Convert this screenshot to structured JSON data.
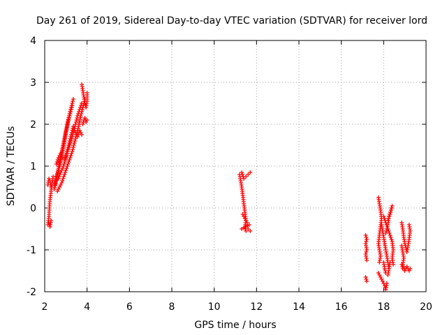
{
  "chart_data": {
    "type": "scatter",
    "title": "Day 261 of 2019, Sidereal Day-to-day VTEC variation (SDTVAR) for receiver lord",
    "xlabel": "GPS time / hours",
    "ylabel": "SDTVAR / TECUs",
    "xlim": [
      2,
      20
    ],
    "ylim": [
      -2,
      4
    ],
    "x_ticks": [
      2,
      4,
      6,
      8,
      10,
      12,
      14,
      16,
      18,
      20
    ],
    "y_ticks": [
      -2,
      -1,
      0,
      1,
      2,
      3,
      4
    ],
    "grid": true,
    "marker": "+",
    "color": "#ff0000",
    "series": [
      {
        "name": "SDTVAR",
        "segments": [
          [
            [
              2.15,
              -0.4
            ],
            [
              2.2,
              -0.2
            ],
            [
              2.22,
              0.0
            ],
            [
              2.25,
              0.2
            ],
            [
              2.3,
              0.4
            ],
            [
              2.35,
              0.6
            ],
            [
              2.4,
              0.75
            ]
          ],
          [
            [
              2.15,
              0.55
            ],
            [
              2.2,
              0.7
            ],
            [
              2.25,
              0.65
            ],
            [
              2.3,
              0.5
            ]
          ],
          [
            [
              2.2,
              -0.35
            ],
            [
              2.25,
              -0.45
            ],
            [
              2.3,
              -0.3
            ]
          ],
          [
            [
              2.45,
              0.45
            ],
            [
              2.55,
              0.7
            ],
            [
              2.65,
              0.95
            ],
            [
              2.75,
              1.2
            ],
            [
              2.85,
              1.45
            ],
            [
              2.95,
              1.7
            ],
            [
              3.05,
              1.95
            ],
            [
              3.15,
              2.2
            ],
            [
              3.25,
              2.4
            ],
            [
              3.35,
              2.6
            ]
          ],
          [
            [
              2.5,
              0.55
            ],
            [
              2.6,
              0.8
            ],
            [
              2.7,
              1.0
            ],
            [
              2.8,
              1.25
            ],
            [
              2.9,
              1.5
            ],
            [
              3.0,
              1.8
            ],
            [
              3.1,
              2.05
            ],
            [
              3.2,
              2.25
            ],
            [
              3.3,
              2.45
            ]
          ],
          [
            [
              2.6,
              0.4
            ],
            [
              2.7,
              0.5
            ],
            [
              2.8,
              0.6
            ],
            [
              2.9,
              0.75
            ],
            [
              3.0,
              0.9
            ],
            [
              3.1,
              1.05
            ],
            [
              3.2,
              1.2
            ],
            [
              3.3,
              1.35
            ],
            [
              3.4,
              1.55
            ],
            [
              3.5,
              1.75
            ],
            [
              3.6,
              1.95
            ],
            [
              3.7,
              2.2
            ],
            [
              3.8,
              2.4
            ],
            [
              3.9,
              2.6
            ]
          ],
          [
            [
              2.55,
              1.05
            ],
            [
              2.65,
              1.2
            ],
            [
              2.75,
              1.3
            ],
            [
              2.85,
              1.2
            ],
            [
              2.95,
              1.15
            ],
            [
              3.05,
              1.3
            ],
            [
              3.15,
              1.45
            ],
            [
              3.25,
              1.6
            ],
            [
              3.35,
              1.8
            ],
            [
              3.45,
              2.0
            ],
            [
              3.55,
              2.2
            ],
            [
              3.65,
              2.35
            ],
            [
              3.75,
              2.5
            ]
          ],
          [
            [
              2.65,
              0.7
            ],
            [
              2.75,
              0.85
            ],
            [
              2.85,
              0.95
            ],
            [
              2.95,
              1.1
            ],
            [
              3.05,
              1.35
            ],
            [
              3.15,
              1.55
            ],
            [
              3.25,
              1.75
            ],
            [
              3.35,
              1.95
            ],
            [
              3.45,
              1.8
            ],
            [
              3.55,
              1.7
            ],
            [
              3.65,
              1.85
            ],
            [
              3.75,
              1.75
            ]
          ],
          [
            [
              3.75,
              2.95
            ],
            [
              3.8,
              2.8
            ],
            [
              3.85,
              2.65
            ],
            [
              3.9,
              2.5
            ],
            [
              3.95,
              2.4
            ],
            [
              4.0,
              2.55
            ],
            [
              4.0,
              2.75
            ]
          ],
          [
            [
              3.8,
              2.0
            ],
            [
              3.85,
              2.1
            ],
            [
              3.9,
              2.15
            ],
            [
              3.95,
              2.05
            ],
            [
              4.0,
              2.1
            ]
          ],
          [
            [
              11.2,
              0.8
            ],
            [
              11.25,
              0.65
            ],
            [
              11.3,
              0.5
            ],
            [
              11.35,
              0.3
            ],
            [
              11.4,
              0.1
            ],
            [
              11.45,
              -0.1
            ],
            [
              11.5,
              -0.3
            ],
            [
              11.45,
              -0.45
            ],
            [
              11.5,
              -0.55
            ],
            [
              11.6,
              -0.5
            ],
            [
              11.7,
              -0.55
            ]
          ],
          [
            [
              11.3,
              0.85
            ],
            [
              11.4,
              0.7
            ],
            [
              11.5,
              0.75
            ],
            [
              11.6,
              0.8
            ],
            [
              11.7,
              0.85
            ]
          ],
          [
            [
              11.35,
              -0.15
            ],
            [
              11.45,
              -0.25
            ],
            [
              11.55,
              -0.35
            ],
            [
              11.65,
              -0.4
            ],
            [
              11.5,
              -0.45
            ],
            [
              11.3,
              -0.5
            ]
          ],
          [
            [
              17.15,
              -0.65
            ],
            [
              17.2,
              -0.75
            ],
            [
              17.15,
              -0.85
            ],
            [
              17.2,
              -1.0
            ],
            [
              17.15,
              -1.1
            ],
            [
              17.2,
              -1.25
            ]
          ],
          [
            [
              17.15,
              -1.65
            ],
            [
              17.2,
              -1.75
            ]
          ],
          [
            [
              17.75,
              0.25
            ],
            [
              17.8,
              0.1
            ],
            [
              17.85,
              -0.05
            ],
            [
              17.9,
              -0.25
            ],
            [
              17.85,
              -0.45
            ],
            [
              17.8,
              -0.65
            ],
            [
              17.75,
              -0.85
            ],
            [
              17.8,
              -1.0
            ],
            [
              17.85,
              -1.15
            ],
            [
              17.8,
              -1.3
            ]
          ],
          [
            [
              17.75,
              -1.55
            ],
            [
              17.85,
              -1.65
            ],
            [
              17.95,
              -1.75
            ],
            [
              18.05,
              -1.85
            ],
            [
              18.1,
              -1.95
            ],
            [
              18.15,
              -1.8
            ]
          ],
          [
            [
              17.9,
              -0.4
            ],
            [
              17.95,
              -0.55
            ],
            [
              18.0,
              -0.7
            ],
            [
              18.05,
              -0.85
            ],
            [
              18.1,
              -1.0
            ],
            [
              18.15,
              -1.15
            ],
            [
              18.2,
              -1.3
            ],
            [
              18.25,
              -1.45
            ]
          ],
          [
            [
              18.0,
              -0.2
            ],
            [
              18.1,
              -0.35
            ],
            [
              18.2,
              -0.5
            ],
            [
              18.3,
              -0.65
            ],
            [
              18.4,
              -0.8
            ],
            [
              18.45,
              -1.0
            ],
            [
              18.4,
              -1.2
            ],
            [
              18.45,
              -1.35
            ]
          ],
          [
            [
              18.1,
              -0.6
            ],
            [
              18.2,
              -0.4
            ],
            [
              18.25,
              -0.2
            ],
            [
              18.35,
              -0.05
            ],
            [
              18.4,
              0.05
            ],
            [
              18.3,
              -0.15
            ],
            [
              18.2,
              -0.3
            ]
          ],
          [
            [
              18.0,
              -1.3
            ],
            [
              18.05,
              -1.45
            ],
            [
              18.1,
              -1.55
            ],
            [
              18.2,
              -1.6
            ],
            [
              18.25,
              -1.45
            ],
            [
              18.3,
              -1.3
            ]
          ],
          [
            [
              18.85,
              -0.35
            ],
            [
              18.9,
              -0.5
            ],
            [
              18.95,
              -0.7
            ],
            [
              19.0,
              -0.85
            ],
            [
              19.05,
              -0.95
            ],
            [
              19.1,
              -1.05
            ],
            [
              19.15,
              -0.9
            ],
            [
              19.2,
              -0.75
            ],
            [
              19.25,
              -0.55
            ],
            [
              19.2,
              -0.4
            ]
          ],
          [
            [
              18.85,
              -1.35
            ],
            [
              18.9,
              -1.45
            ],
            [
              18.95,
              -1.4
            ],
            [
              19.0,
              -1.5
            ],
            [
              19.1,
              -1.4
            ],
            [
              19.2,
              -1.5
            ],
            [
              19.25,
              -1.45
            ]
          ],
          [
            [
              18.85,
              -0.9
            ],
            [
              18.9,
              -1.05
            ],
            [
              18.95,
              -1.2
            ],
            [
              18.9,
              -1.35
            ]
          ]
        ]
      }
    ]
  }
}
